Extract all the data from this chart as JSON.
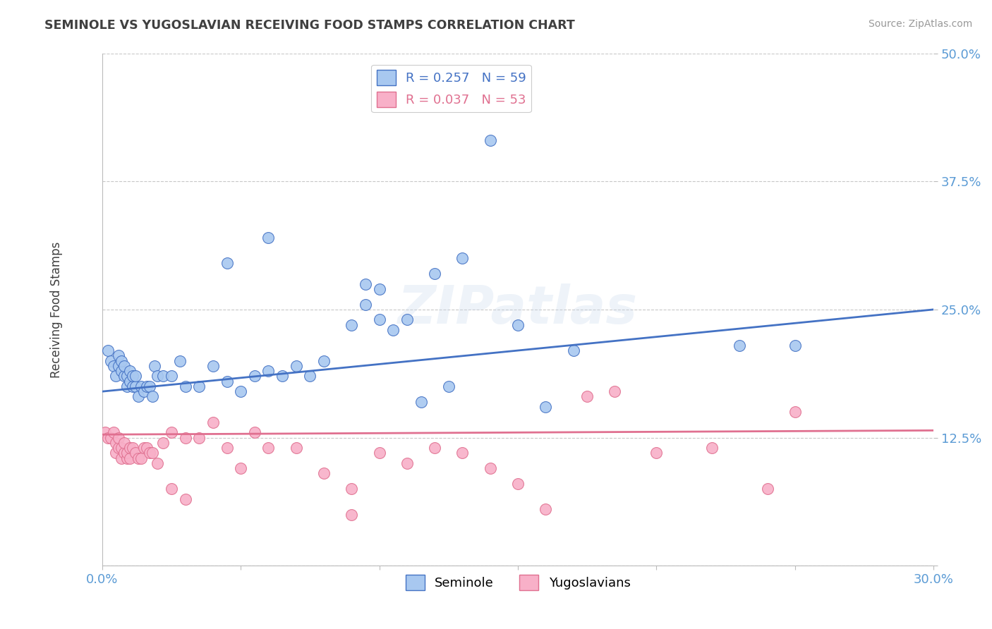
{
  "title": "SEMINOLE VS YUGOSLAVIAN RECEIVING FOOD STAMPS CORRELATION CHART",
  "source": "Source: ZipAtlas.com",
  "xlabel": "",
  "ylabel": "Receiving Food Stamps",
  "xlim": [
    0.0,
    0.3
  ],
  "ylim": [
    0.0,
    0.5
  ],
  "xticks": [
    0.0,
    0.05,
    0.1,
    0.15,
    0.2,
    0.25,
    0.3
  ],
  "xticklabels": [
    "0.0%",
    "",
    "",
    "",
    "",
    "",
    "30.0%"
  ],
  "yticks": [
    0.0,
    0.125,
    0.25,
    0.375,
    0.5
  ],
  "yticklabels": [
    "",
    "12.5%",
    "25.0%",
    "37.5%",
    "50.0%"
  ],
  "seminole_R": 0.257,
  "seminole_N": 59,
  "yugoslavian_R": 0.037,
  "yugoslavian_N": 53,
  "seminole_color": "#A8C8F0",
  "yugoslavian_color": "#F8B0C8",
  "seminole_line_color": "#4472C4",
  "yugoslavian_line_color": "#E07090",
  "background_color": "#FFFFFF",
  "grid_color": "#C8C8C8",
  "title_color": "#404040",
  "axis_label_color": "#5B9BD5",
  "watermark": "ZIPatlas",
  "seminole_x": [
    0.002,
    0.003,
    0.004,
    0.005,
    0.006,
    0.006,
    0.007,
    0.007,
    0.008,
    0.008,
    0.009,
    0.009,
    0.01,
    0.01,
    0.011,
    0.011,
    0.012,
    0.012,
    0.013,
    0.014,
    0.015,
    0.016,
    0.017,
    0.018,
    0.019,
    0.02,
    0.022,
    0.025,
    0.028,
    0.03,
    0.035,
    0.04,
    0.045,
    0.05,
    0.055,
    0.06,
    0.065,
    0.07,
    0.075,
    0.08,
    0.09,
    0.095,
    0.1,
    0.11,
    0.12,
    0.13,
    0.14,
    0.15,
    0.16,
    0.17,
    0.095,
    0.1,
    0.105,
    0.115,
    0.125,
    0.045,
    0.06,
    0.23,
    0.25
  ],
  "seminole_y": [
    0.21,
    0.2,
    0.195,
    0.185,
    0.195,
    0.205,
    0.19,
    0.2,
    0.185,
    0.195,
    0.185,
    0.175,
    0.18,
    0.19,
    0.175,
    0.185,
    0.175,
    0.185,
    0.165,
    0.175,
    0.17,
    0.175,
    0.175,
    0.165,
    0.195,
    0.185,
    0.185,
    0.185,
    0.2,
    0.175,
    0.175,
    0.195,
    0.18,
    0.17,
    0.185,
    0.19,
    0.185,
    0.195,
    0.185,
    0.2,
    0.235,
    0.255,
    0.24,
    0.24,
    0.285,
    0.3,
    0.415,
    0.235,
    0.155,
    0.21,
    0.275,
    0.27,
    0.23,
    0.16,
    0.175,
    0.295,
    0.32,
    0.215,
    0.215
  ],
  "yugoslavian_x": [
    0.001,
    0.002,
    0.003,
    0.004,
    0.005,
    0.005,
    0.006,
    0.006,
    0.007,
    0.007,
    0.008,
    0.008,
    0.009,
    0.009,
    0.01,
    0.01,
    0.011,
    0.012,
    0.013,
    0.014,
    0.015,
    0.016,
    0.017,
    0.018,
    0.02,
    0.022,
    0.025,
    0.03,
    0.035,
    0.04,
    0.045,
    0.05,
    0.055,
    0.06,
    0.07,
    0.08,
    0.09,
    0.1,
    0.11,
    0.12,
    0.13,
    0.14,
    0.15,
    0.16,
    0.175,
    0.185,
    0.2,
    0.22,
    0.24,
    0.25,
    0.025,
    0.03,
    0.09
  ],
  "yugoslavian_y": [
    0.13,
    0.125,
    0.125,
    0.13,
    0.11,
    0.12,
    0.115,
    0.125,
    0.105,
    0.115,
    0.11,
    0.12,
    0.105,
    0.11,
    0.105,
    0.115,
    0.115,
    0.11,
    0.105,
    0.105,
    0.115,
    0.115,
    0.11,
    0.11,
    0.1,
    0.12,
    0.13,
    0.125,
    0.125,
    0.14,
    0.115,
    0.095,
    0.13,
    0.115,
    0.115,
    0.09,
    0.075,
    0.11,
    0.1,
    0.115,
    0.11,
    0.095,
    0.08,
    0.055,
    0.165,
    0.17,
    0.11,
    0.115,
    0.075,
    0.15,
    0.075,
    0.065,
    0.05
  ],
  "blue_trend_x0": 0.0,
  "blue_trend_y0": 0.17,
  "blue_trend_x1": 0.3,
  "blue_trend_y1": 0.25,
  "pink_trend_x0": 0.0,
  "pink_trend_y0": 0.128,
  "pink_trend_x1": 0.3,
  "pink_trend_y1": 0.132
}
